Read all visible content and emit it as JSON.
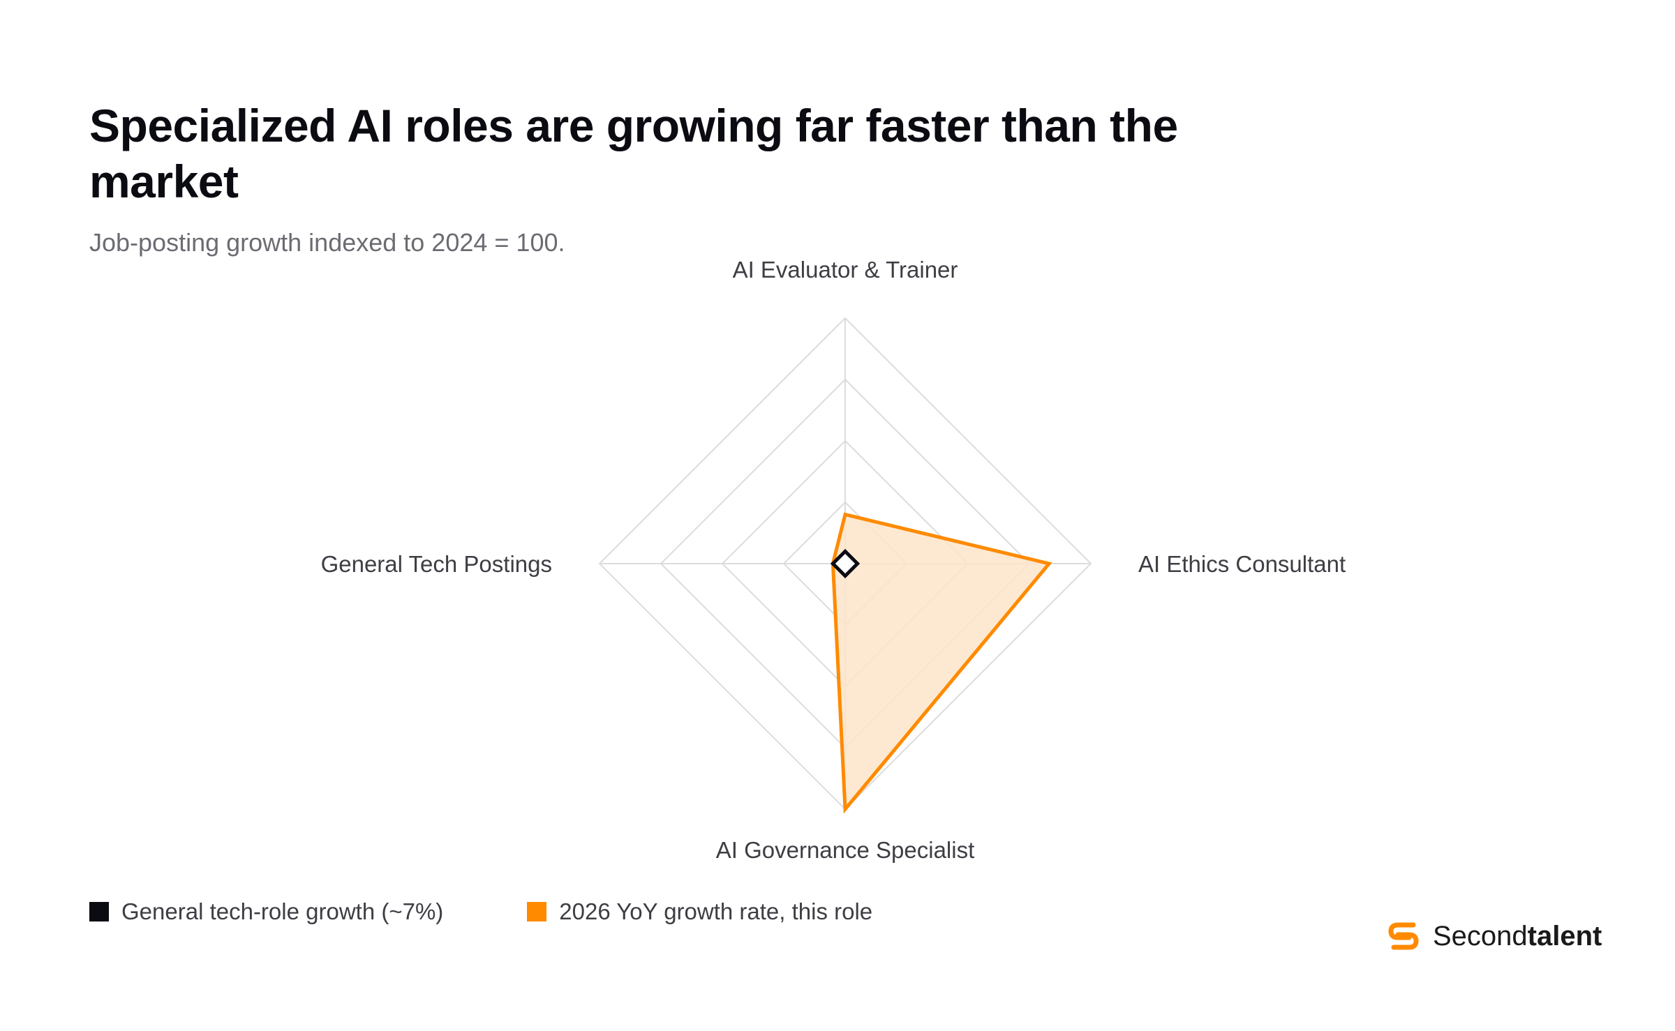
{
  "header": {
    "title": "Specialized AI roles are growing far faster than the market",
    "subtitle": "Job-posting growth indexed to 2024 = 100."
  },
  "legend": {
    "items": [
      {
        "label": "General tech-role growth (~7%)",
        "color": "#0b0b12"
      },
      {
        "label": "2026 YoY growth rate, this role",
        "color": "#ff8a00"
      }
    ]
  },
  "brand": {
    "name_regular": "Second",
    "name_bold": "talent",
    "logo_icon": "secondtalent-logo-icon",
    "color": "#ff8a00"
  },
  "chart_data": {
    "type": "radar",
    "axes": [
      "AI Evaluator & Trainer",
      "AI Ethics Consultant",
      "AI Governance Specialist",
      "General Tech Postings"
    ],
    "rmax": 100,
    "grid_levels": 4,
    "grid": true,
    "series": [
      {
        "name": "2026 YoY growth rate, this role",
        "values": [
          20,
          83,
          100,
          5
        ],
        "color": "#ff8a00",
        "fill": "#fde5c9"
      },
      {
        "name": "General tech-role growth (~7%)",
        "values": [
          5,
          5,
          5,
          5
        ],
        "color": "#0b0b12"
      }
    ],
    "legend_position": "bottom-left"
  }
}
